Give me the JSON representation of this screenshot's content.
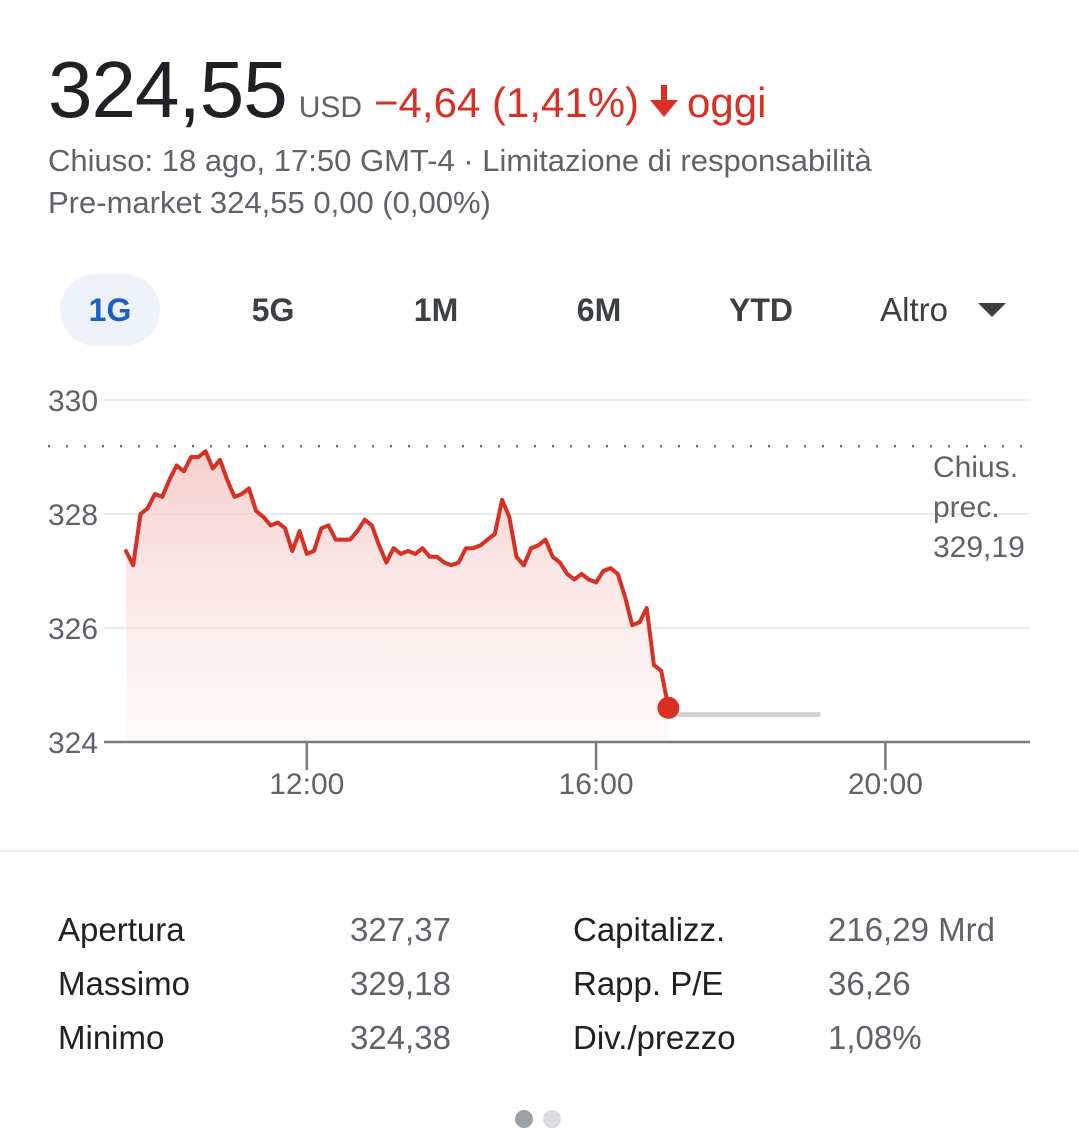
{
  "quote": {
    "price": "324,55",
    "currency": "USD",
    "change": "−4,64 (1,41%)",
    "period": "oggi",
    "trend_icon": "arrow-down-icon",
    "change_color": "#d93025"
  },
  "status": {
    "closed": "Chiuso: 18 ago, 17:50 GMT-4",
    "separator": "·",
    "disclaimer": "Limitazione di responsabilità",
    "premarket": "Pre-market 324,55 0,00 (0,00%)"
  },
  "ranges": {
    "items": [
      "1G",
      "5G",
      "1M",
      "6M",
      "YTD"
    ],
    "active": "1G",
    "more_label": "Altro",
    "more_icon": "dropdown-triangle-icon"
  },
  "chart_data": {
    "type": "area",
    "title": "",
    "xlabel": "",
    "ylabel": "",
    "x_ticks": [
      "12:00",
      "16:00",
      "20:00"
    ],
    "x_tick_values": [
      12,
      16,
      20
    ],
    "xlim": [
      9.5,
      22
    ],
    "y_ticks": [
      "330",
      "328",
      "326",
      "324"
    ],
    "y_tick_values": [
      330,
      328,
      326,
      324
    ],
    "ylim": [
      324,
      330
    ],
    "grid": true,
    "line_color": "#d93025",
    "previous_close": {
      "label_lines": [
        "Chius.",
        "prec.",
        "329,19"
      ],
      "value": 329.19
    },
    "series": [
      {
        "values": [
          [
            9.5,
            327.35
          ],
          [
            9.6,
            327.1
          ],
          [
            9.7,
            328.0
          ],
          [
            9.8,
            328.1
          ],
          [
            9.9,
            328.35
          ],
          [
            10.0,
            328.3
          ],
          [
            10.1,
            328.6
          ],
          [
            10.2,
            328.85
          ],
          [
            10.3,
            328.75
          ],
          [
            10.4,
            329.0
          ],
          [
            10.5,
            329.0
          ],
          [
            10.6,
            329.1
          ],
          [
            10.7,
            328.8
          ],
          [
            10.8,
            328.95
          ],
          [
            10.9,
            328.6
          ],
          [
            11.0,
            328.3
          ],
          [
            11.1,
            328.35
          ],
          [
            11.2,
            328.45
          ],
          [
            11.3,
            328.05
          ],
          [
            11.4,
            327.95
          ],
          [
            11.5,
            327.8
          ],
          [
            11.6,
            327.85
          ],
          [
            11.7,
            327.75
          ],
          [
            11.8,
            327.35
          ],
          [
            11.9,
            327.7
          ],
          [
            12.0,
            327.3
          ],
          [
            12.1,
            327.35
          ],
          [
            12.2,
            327.75
          ],
          [
            12.3,
            327.8
          ],
          [
            12.4,
            327.55
          ],
          [
            12.5,
            327.55
          ],
          [
            12.6,
            327.55
          ],
          [
            12.7,
            327.7
          ],
          [
            12.8,
            327.9
          ],
          [
            12.9,
            327.8
          ],
          [
            13.0,
            327.45
          ],
          [
            13.1,
            327.15
          ],
          [
            13.2,
            327.4
          ],
          [
            13.3,
            327.3
          ],
          [
            13.4,
            327.35
          ],
          [
            13.5,
            327.3
          ],
          [
            13.6,
            327.4
          ],
          [
            13.7,
            327.25
          ],
          [
            13.8,
            327.25
          ],
          [
            13.9,
            327.15
          ],
          [
            14.0,
            327.1
          ],
          [
            14.1,
            327.15
          ],
          [
            14.2,
            327.4
          ],
          [
            14.3,
            327.4
          ],
          [
            14.4,
            327.45
          ],
          [
            14.5,
            327.55
          ],
          [
            14.6,
            327.65
          ],
          [
            14.7,
            328.25
          ],
          [
            14.8,
            327.95
          ],
          [
            14.9,
            327.25
          ],
          [
            15.0,
            327.1
          ],
          [
            15.1,
            327.4
          ],
          [
            15.2,
            327.45
          ],
          [
            15.3,
            327.55
          ],
          [
            15.4,
            327.25
          ],
          [
            15.5,
            327.15
          ],
          [
            15.6,
            326.95
          ],
          [
            15.7,
            326.85
          ],
          [
            15.8,
            326.95
          ],
          [
            15.9,
            326.85
          ],
          [
            16.0,
            326.8
          ],
          [
            16.1,
            327.0
          ],
          [
            16.2,
            327.05
          ],
          [
            16.3,
            326.95
          ],
          [
            16.4,
            326.55
          ],
          [
            16.5,
            326.05
          ],
          [
            16.6,
            326.1
          ],
          [
            16.7,
            326.35
          ],
          [
            16.8,
            325.35
          ],
          [
            16.9,
            325.25
          ],
          [
            17.0,
            324.6
          ]
        ]
      }
    ],
    "extended_hours": {
      "from": 17.0,
      "to": 19.1,
      "value": 324.55,
      "color": "#d0d0d0"
    },
    "last_point": {
      "x": 17.0,
      "y": 324.6
    }
  },
  "stats": {
    "left": [
      {
        "label": "Apertura",
        "value": "327,37"
      },
      {
        "label": "Massimo",
        "value": "329,18"
      },
      {
        "label": "Minimo",
        "value": "324,38"
      }
    ],
    "right": [
      {
        "label": "Capitalizz.",
        "value": "216,29 Mrd"
      },
      {
        "label": "Rapp. P/E",
        "value": "36,26"
      },
      {
        "label": "Div./prezzo",
        "value": "1,08%"
      }
    ]
  },
  "pager": {
    "count": 2,
    "active": 0
  }
}
